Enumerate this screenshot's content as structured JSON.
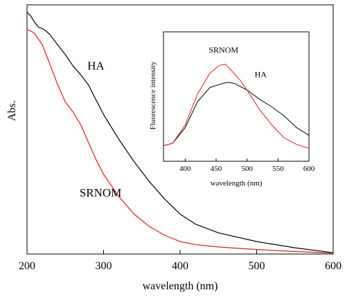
{
  "chart_data": [
    {
      "type": "line",
      "title": "",
      "xlabel": "wavelength (nm)",
      "ylabel": "Abs.",
      "xlim": [
        200,
        600
      ],
      "ylim": [
        0,
        1
      ],
      "xticks": [
        200,
        300,
        400,
        500,
        600
      ],
      "yticks_labeled": false,
      "grid": false,
      "series": [
        {
          "name": "HA",
          "color": "#000000",
          "x": [
            200,
            205,
            210,
            215,
            220,
            225,
            230,
            240,
            250,
            260,
            270,
            280,
            290,
            300,
            320,
            340,
            360,
            380,
            400,
            420,
            450,
            500,
            550,
            600
          ],
          "y": [
            0.97,
            0.955,
            0.93,
            0.91,
            0.905,
            0.895,
            0.88,
            0.84,
            0.8,
            0.755,
            0.72,
            0.68,
            0.62,
            0.56,
            0.46,
            0.37,
            0.29,
            0.22,
            0.16,
            0.12,
            0.085,
            0.05,
            0.025,
            0.005
          ]
        },
        {
          "name": "SRNOM",
          "color": "#e41a1c",
          "x": [
            200,
            205,
            210,
            220,
            230,
            240,
            250,
            260,
            270,
            280,
            290,
            300,
            320,
            340,
            360,
            380,
            400,
            420,
            450,
            500,
            550,
            600
          ],
          "y": [
            0.9,
            0.895,
            0.885,
            0.84,
            0.76,
            0.68,
            0.61,
            0.57,
            0.52,
            0.45,
            0.38,
            0.32,
            0.23,
            0.16,
            0.11,
            0.075,
            0.05,
            0.038,
            0.028,
            0.018,
            0.01,
            0.004
          ]
        }
      ],
      "annotations": [
        {
          "text": "HA",
          "x": 290,
          "y": 0.74
        },
        {
          "text": "SRNOM",
          "x": 296,
          "y": 0.23
        }
      ]
    },
    {
      "type": "line",
      "title": "",
      "xlabel": "wavelength (nm)",
      "ylabel": "Fluorescence intensity",
      "xlim": [
        365,
        600
      ],
      "ylim": [
        0,
        1
      ],
      "xticks": [
        400,
        450,
        500,
        550,
        600
      ],
      "yticks_labeled": false,
      "grid": false,
      "series": [
        {
          "name": "HA",
          "color": "#000000",
          "x": [
            365,
            380,
            400,
            420,
            440,
            460,
            470,
            480,
            500,
            520,
            540,
            560,
            580,
            600
          ],
          "y": [
            0.12,
            0.14,
            0.26,
            0.46,
            0.57,
            0.6,
            0.61,
            0.6,
            0.55,
            0.48,
            0.42,
            0.35,
            0.26,
            0.2
          ]
        },
        {
          "name": "SRNOM",
          "color": "#e41a1c",
          "x": [
            365,
            380,
            400,
            420,
            440,
            455,
            465,
            475,
            490,
            500,
            520,
            540,
            560,
            580,
            600
          ],
          "y": [
            0.12,
            0.14,
            0.28,
            0.52,
            0.68,
            0.74,
            0.75,
            0.7,
            0.62,
            0.55,
            0.4,
            0.28,
            0.18,
            0.13,
            0.1
          ]
        }
      ],
      "annotations": [
        {
          "text": "SRNOM",
          "x": 462,
          "y": 0.84
        },
        {
          "text": "HA",
          "x": 522,
          "y": 0.65
        }
      ]
    }
  ]
}
